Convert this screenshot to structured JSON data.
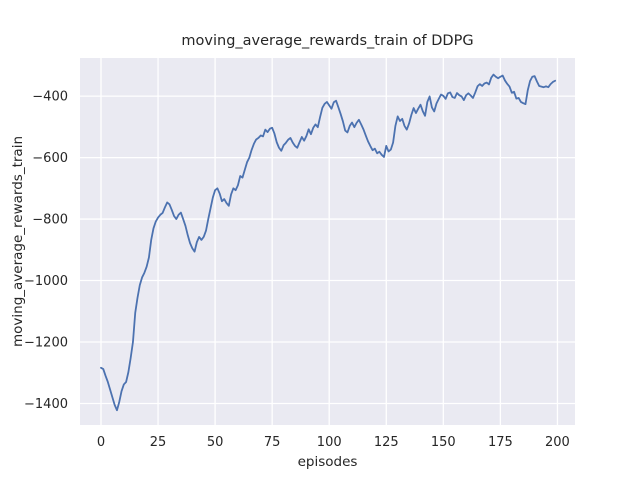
{
  "chart_data": {
    "type": "line",
    "title": "moving_average_rewards_train of DDPG",
    "xlabel": "episodes",
    "ylabel": "moving_average_rewards_train",
    "grid": true,
    "legend": null,
    "x_start": 0,
    "x_step": 1,
    "xlim": [
      -9.2,
      207.7
    ],
    "ylim": [
      -1470,
      -276
    ],
    "xticks": [
      0,
      25,
      50,
      75,
      100,
      125,
      150,
      175,
      200
    ],
    "xtick_labels": [
      "0",
      "25",
      "50",
      "75",
      "100",
      "125",
      "150",
      "175",
      "200"
    ],
    "yticks": [
      -400,
      -600,
      -800,
      -1000,
      -1200,
      -1400
    ],
    "ytick_labels": [
      "−400",
      "−600",
      "−800",
      "−1000",
      "−1200",
      "−1400"
    ],
    "colors": {
      "line": "#4c72b0",
      "axes_background": "#eaeaf2",
      "grid": "#ffffff",
      "text": "#262626",
      "figure_background": "#ffffff"
    },
    "values": [
      -1284,
      -1288,
      -1310,
      -1330,
      -1355,
      -1380,
      -1405,
      -1422,
      -1395,
      -1360,
      -1338,
      -1330,
      -1298,
      -1252,
      -1200,
      -1105,
      -1056,
      -1015,
      -990,
      -975,
      -955,
      -925,
      -868,
      -830,
      -808,
      -795,
      -786,
      -780,
      -762,
      -746,
      -752,
      -770,
      -790,
      -800,
      -786,
      -779,
      -800,
      -822,
      -852,
      -878,
      -895,
      -906,
      -875,
      -858,
      -868,
      -858,
      -838,
      -800,
      -765,
      -730,
      -706,
      -700,
      -717,
      -742,
      -735,
      -748,
      -757,
      -720,
      -700,
      -706,
      -690,
      -660,
      -665,
      -640,
      -615,
      -600,
      -575,
      -555,
      -541,
      -536,
      -528,
      -531,
      -509,
      -517,
      -506,
      -503,
      -522,
      -550,
      -568,
      -578,
      -560,
      -552,
      -542,
      -536,
      -551,
      -562,
      -568,
      -550,
      -533,
      -545,
      -530,
      -508,
      -524,
      -503,
      -492,
      -501,
      -468,
      -438,
      -425,
      -419,
      -430,
      -441,
      -420,
      -415,
      -436,
      -458,
      -482,
      -512,
      -518,
      -497,
      -486,
      -501,
      -487,
      -477,
      -492,
      -508,
      -528,
      -547,
      -562,
      -576,
      -571,
      -586,
      -581,
      -591,
      -598,
      -562,
      -580,
      -574,
      -551,
      -497,
      -466,
      -481,
      -474,
      -497,
      -509,
      -489,
      -461,
      -439,
      -455,
      -441,
      -428,
      -449,
      -464,
      -419,
      -401,
      -437,
      -450,
      -424,
      -409,
      -395,
      -399,
      -409,
      -391,
      -388,
      -403,
      -406,
      -390,
      -397,
      -401,
      -413,
      -397,
      -391,
      -398,
      -406,
      -388,
      -368,
      -361,
      -367,
      -359,
      -356,
      -362,
      -340,
      -330,
      -337,
      -342,
      -337,
      -333,
      -349,
      -360,
      -369,
      -389,
      -386,
      -408,
      -406,
      -419,
      -423,
      -426,
      -381,
      -351,
      -337,
      -335,
      -352,
      -367,
      -369,
      -371,
      -368,
      -371,
      -361,
      -354,
      -350
    ]
  }
}
